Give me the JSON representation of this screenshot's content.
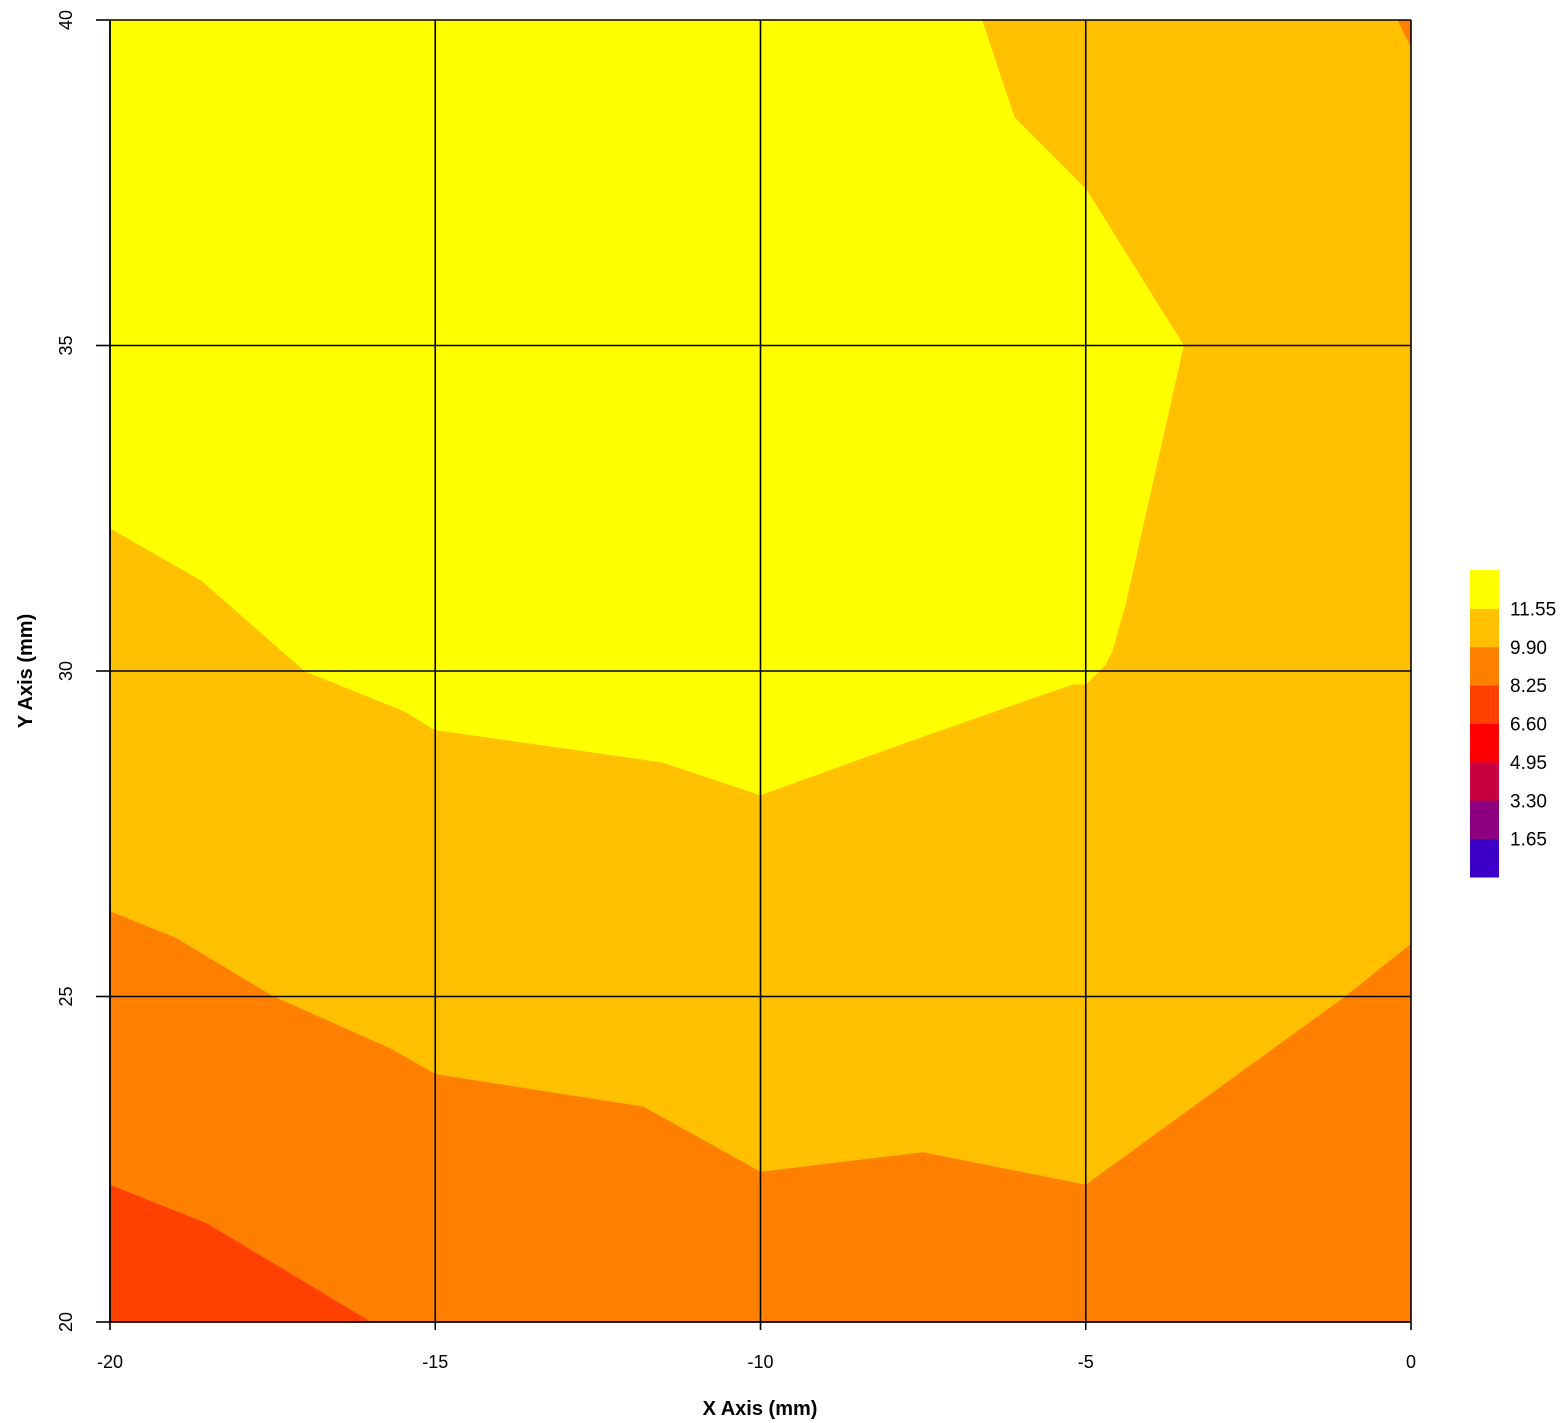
{
  "chart_data": {
    "type": "heatmap",
    "subtype": "filled-contour",
    "title": "",
    "xlabel": "X Axis (mm)",
    "ylabel": "Y Axis (mm)",
    "xlim": [
      -20,
      0
    ],
    "ylim": [
      20,
      40
    ],
    "x_ticks": [
      "-20",
      "-15",
      "-10",
      "-5",
      "0"
    ],
    "y_ticks": [
      "20",
      "25",
      "30",
      "35",
      "40"
    ],
    "grid": true,
    "legend_placement": "right",
    "levels": [
      "1.65",
      "3.30",
      "4.95",
      "6.60",
      "8.25",
      "9.90",
      "11.55"
    ],
    "level_colors": [
      "#3c00c8",
      "#8c0080",
      "#c80040",
      "#ff0000",
      "#ff4000",
      "#ff8000",
      "#ffc000",
      "#ffff00"
    ],
    "regions": [
      {
        "band": "9.90–11.55",
        "color": "#ffc000",
        "polygon": [
          [
            -20,
            40
          ],
          [
            0,
            40
          ],
          [
            0,
            30
          ],
          [
            -20,
            30
          ]
        ]
      },
      {
        "band": "9.90–11.55",
        "color": "#ffc000",
        "polygon": [
          [
            -20,
            30
          ],
          [
            0,
            30
          ],
          [
            0,
            22
          ],
          [
            -20,
            22
          ]
        ]
      },
      {
        "band": ">11.55",
        "color": "#ffff00",
        "polygon": [
          [
            -20,
            40
          ],
          [
            -6.6,
            40
          ],
          [
            -6.1,
            38.5
          ],
          [
            -5.0,
            37.4
          ],
          [
            -3.5,
            35
          ],
          [
            -4.4,
            31
          ],
          [
            -4.6,
            30.3
          ],
          [
            -4.7,
            30.1
          ],
          [
            -5.0,
            29.8
          ],
          [
            -5.2,
            29.8
          ],
          [
            -7.5,
            29.0
          ],
          [
            -10.0,
            28.1
          ],
          [
            -11.5,
            28.6
          ],
          [
            -15.0,
            29.1
          ],
          [
            -15.5,
            29.4
          ],
          [
            -17.0,
            30.0
          ],
          [
            -18.6,
            31.4
          ],
          [
            -20,
            32.2
          ]
        ]
      },
      {
        "band": "8.25–9.90",
        "color": "#ff8000",
        "polygon": [
          [
            -20,
            26.3
          ],
          [
            -19.0,
            25.9
          ],
          [
            -17.5,
            25.0
          ],
          [
            -15.7,
            24.2
          ],
          [
            -15.0,
            23.8
          ],
          [
            -11.8,
            23.3
          ],
          [
            -10.0,
            22.3
          ],
          [
            -7.5,
            22.6
          ],
          [
            -5.0,
            22.1
          ],
          [
            -1.0,
            25.0
          ],
          [
            0,
            25.8
          ],
          [
            0,
            20
          ],
          [
            -20,
            20
          ]
        ]
      },
      {
        "band": "8.25–9.90",
        "color": "#ff8000",
        "polygon": [
          [
            -0.2,
            40
          ],
          [
            0,
            40
          ],
          [
            0,
            39.6
          ]
        ]
      },
      {
        "band": "6.60–8.25",
        "color": "#ff4000",
        "polygon": [
          [
            -20,
            22.1
          ],
          [
            -18.5,
            21.5
          ],
          [
            -16.0,
            20
          ],
          [
            -20,
            20
          ]
        ]
      }
    ]
  }
}
